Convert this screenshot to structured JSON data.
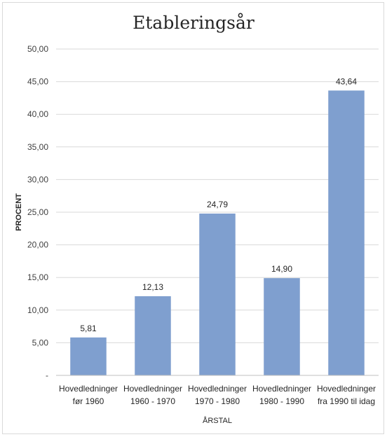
{
  "chart_data": {
    "type": "bar",
    "title": "Etableringsår",
    "xlabel": "ÅRSTAL",
    "ylabel": "PROCENT",
    "categories": [
      [
        "Hovedledninger",
        "før 1960"
      ],
      [
        "Hovedledninger",
        "1960 - 1970"
      ],
      [
        "Hovedledninger",
        "1970 - 1980"
      ],
      [
        "Hovedledninger",
        "1980 - 1990"
      ],
      [
        "Hovedledninger",
        "fra 1990 til idag"
      ]
    ],
    "values": [
      5.81,
      12.13,
      24.79,
      14.9,
      43.64
    ],
    "value_labels": [
      "5,81",
      "12,13",
      "24,79",
      "14,90",
      "43,64"
    ],
    "ylim": [
      0,
      50
    ],
    "yticks": [
      0,
      5,
      10,
      15,
      20,
      25,
      30,
      35,
      40,
      45,
      50
    ],
    "ytick_labels": [
      "-",
      "5,00",
      "10,00",
      "15,00",
      "20,00",
      "25,00",
      "30,00",
      "35,00",
      "40,00",
      "45,00",
      "50,00"
    ],
    "bar_color": "#7f9fcf",
    "grid": true,
    "legend": "none"
  }
}
